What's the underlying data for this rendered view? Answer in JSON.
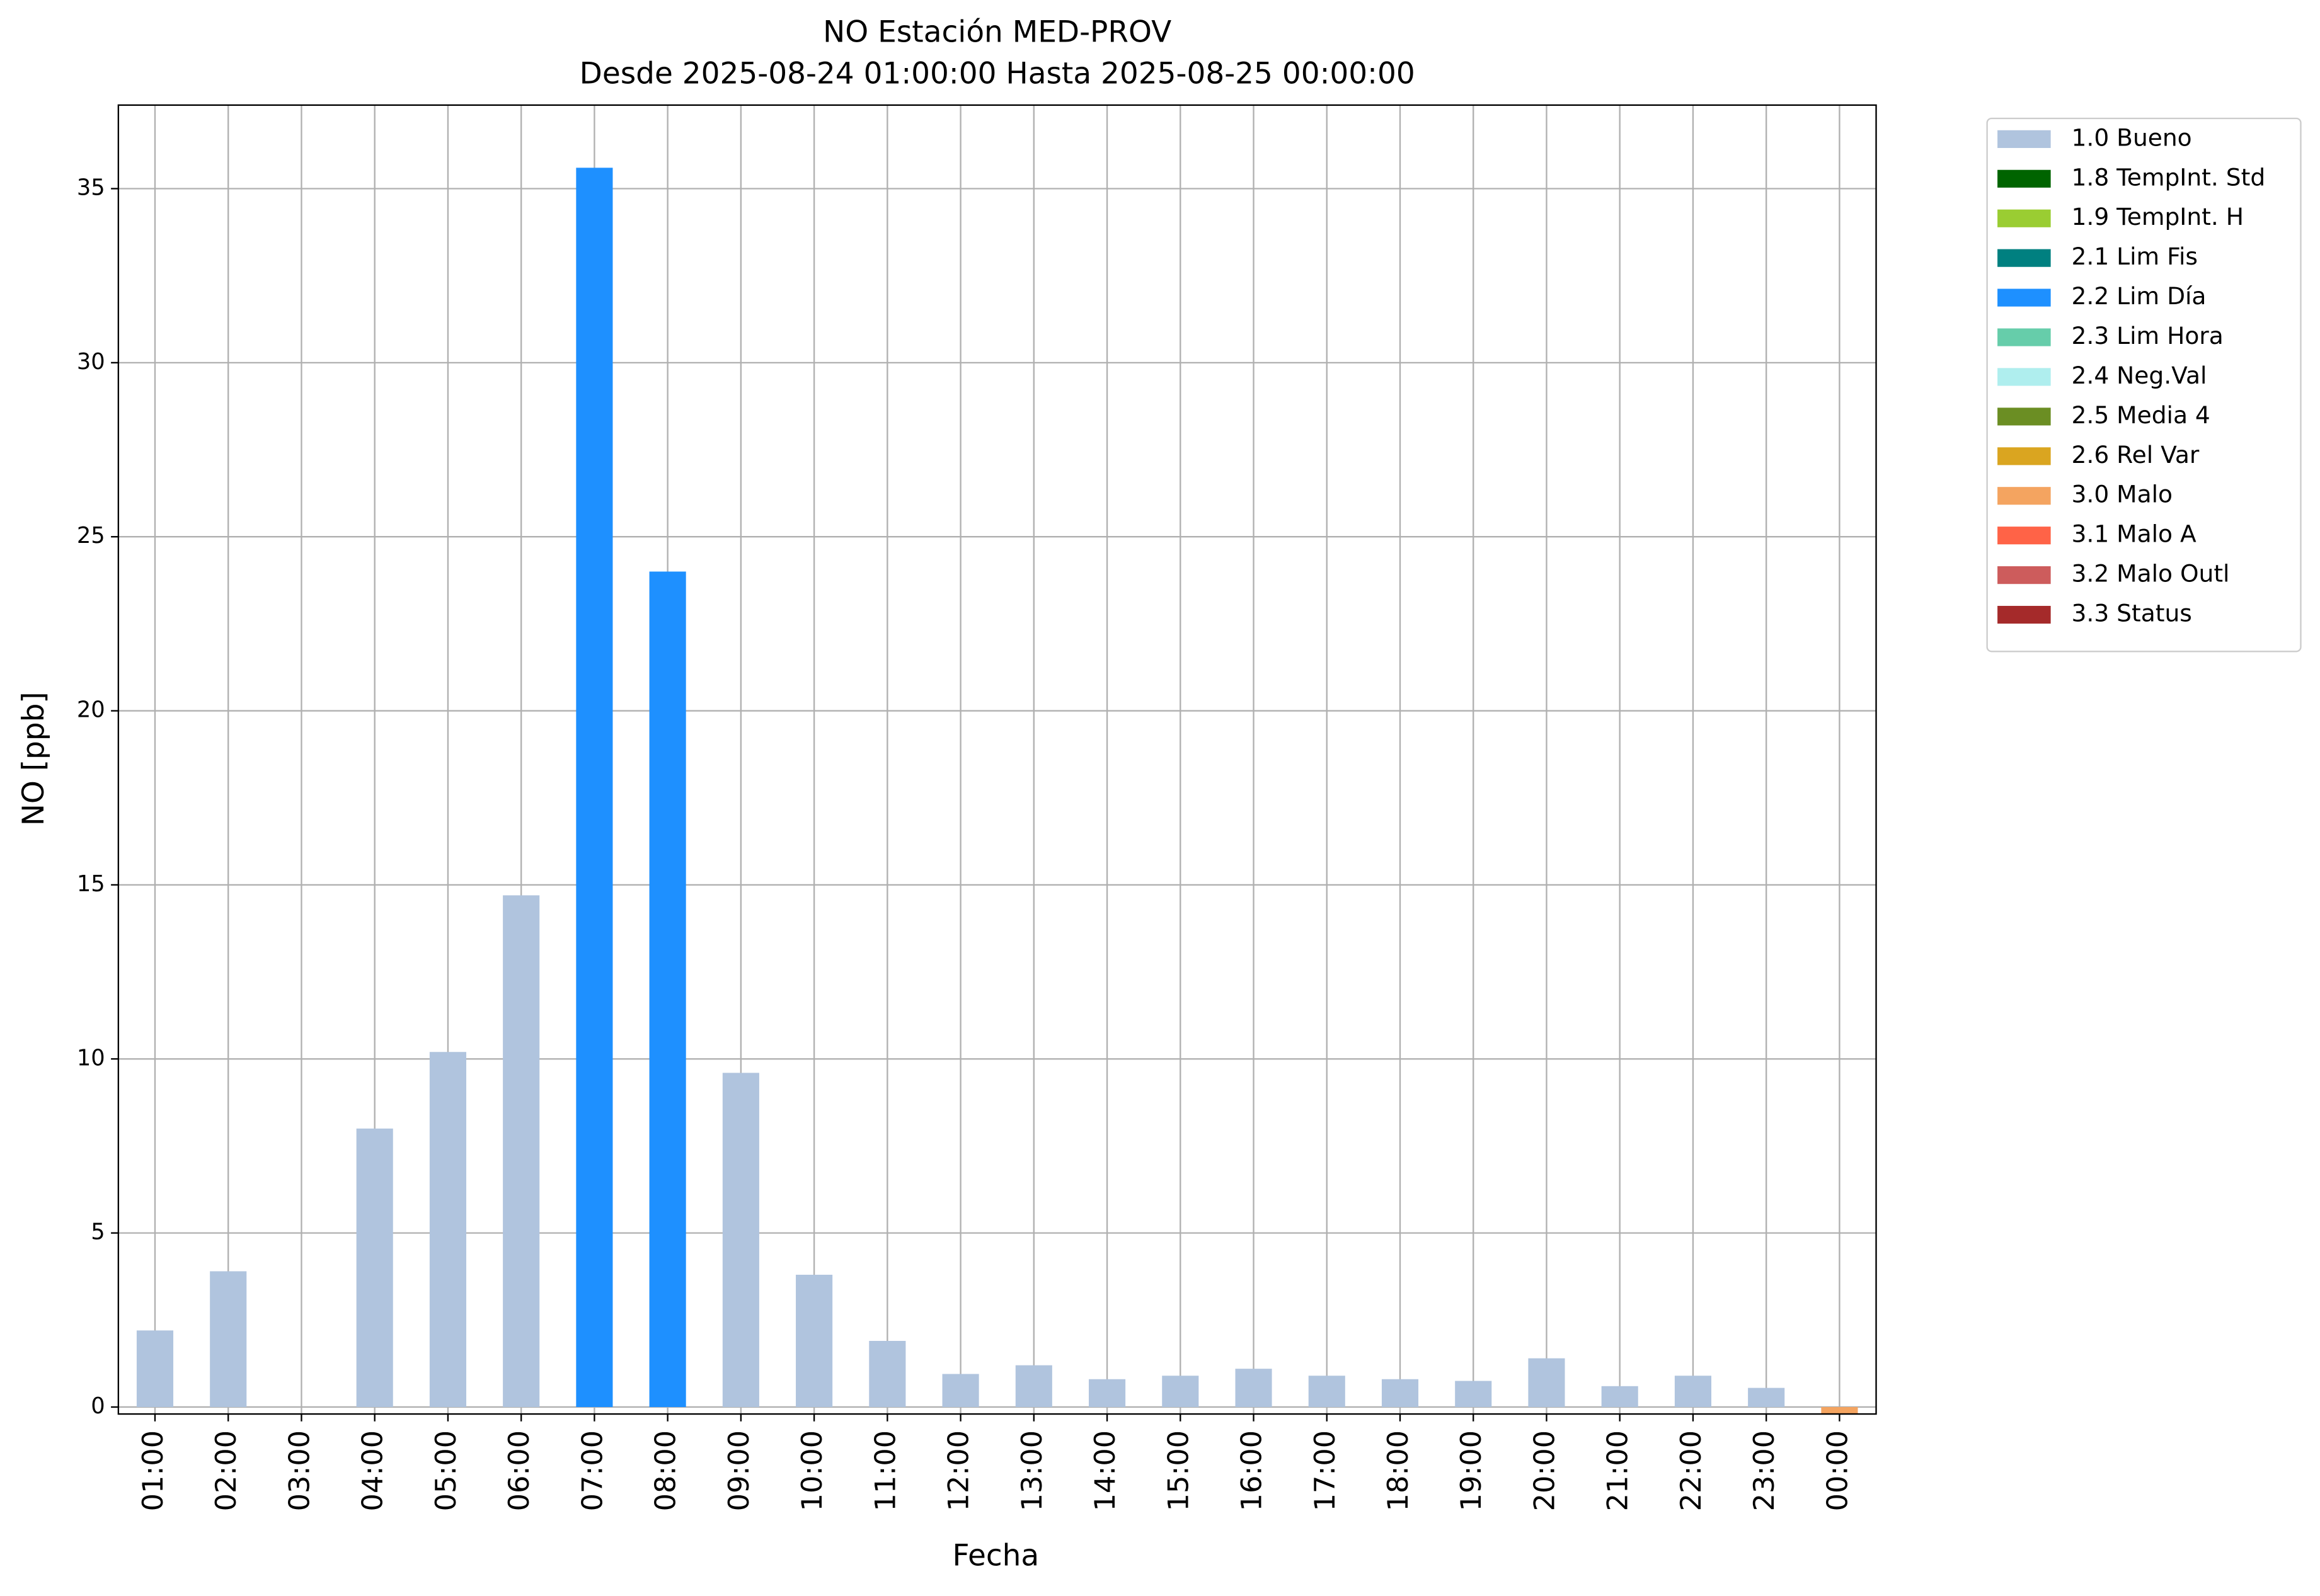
{
  "chart_data": {
    "type": "bar",
    "stacked": true,
    "title": "NO Estación MED-PROV",
    "subtitle": "Desde 2025-08-24 01:00:00 Hasta 2025-08-25 00:00:00",
    "xlabel": "Fecha",
    "ylabel": "NO [ppb]",
    "categories": [
      "01:00",
      "02:00",
      "03:00",
      "04:00",
      "05:00",
      "06:00",
      "07:00",
      "08:00",
      "09:00",
      "10:00",
      "11:00",
      "12:00",
      "13:00",
      "14:00",
      "15:00",
      "16:00",
      "17:00",
      "18:00",
      "19:00",
      "20:00",
      "21:00",
      "22:00",
      "23:00",
      "00:00"
    ],
    "ylim": [
      -0.2,
      37.4
    ],
    "yticks": [
      0,
      5,
      10,
      15,
      20,
      25,
      30,
      35
    ],
    "grid": true,
    "legend": "outside upper right",
    "series": [
      {
        "name": "1.0 Bueno",
        "color": "#b0c4de",
        "values": [
          2.2,
          3.9,
          null,
          8.0,
          10.2,
          14.7,
          null,
          null,
          9.6,
          3.8,
          1.9,
          0.95,
          1.2,
          0.8,
          0.9,
          1.1,
          0.9,
          0.8,
          0.75,
          1.4,
          0.6,
          0.9,
          0.55,
          null
        ]
      },
      {
        "name": "1.8 TempInt. Std",
        "color": "#006400",
        "values": [
          null,
          null,
          null,
          null,
          null,
          null,
          null,
          null,
          null,
          null,
          null,
          null,
          null,
          null,
          null,
          null,
          null,
          null,
          null,
          null,
          null,
          null,
          null,
          null
        ]
      },
      {
        "name": "1.9 TempInt. H",
        "color": "#9acd32",
        "values": [
          null,
          null,
          null,
          null,
          null,
          null,
          null,
          null,
          null,
          null,
          null,
          null,
          null,
          null,
          null,
          null,
          null,
          null,
          null,
          null,
          null,
          null,
          null,
          null
        ]
      },
      {
        "name": "2.1 Lim Fis",
        "color": "#008080",
        "values": [
          null,
          null,
          null,
          null,
          null,
          null,
          null,
          null,
          null,
          null,
          null,
          null,
          null,
          null,
          null,
          null,
          null,
          null,
          null,
          null,
          null,
          null,
          null,
          null
        ]
      },
      {
        "name": "2.2 Lim Día",
        "color": "#1e90ff",
        "values": [
          null,
          null,
          null,
          null,
          null,
          null,
          35.6,
          24.0,
          null,
          null,
          null,
          null,
          null,
          null,
          null,
          null,
          null,
          null,
          null,
          null,
          null,
          null,
          null,
          null
        ]
      },
      {
        "name": "2.3 Lim Hora",
        "color": "#66cdaa",
        "values": [
          null,
          null,
          null,
          null,
          null,
          null,
          null,
          null,
          null,
          null,
          null,
          null,
          null,
          null,
          null,
          null,
          null,
          null,
          null,
          null,
          null,
          null,
          null,
          null
        ]
      },
      {
        "name": "2.4 Neg.Val",
        "color": "#afeeee",
        "values": [
          null,
          null,
          null,
          null,
          null,
          null,
          null,
          null,
          null,
          null,
          null,
          null,
          null,
          null,
          null,
          null,
          null,
          null,
          null,
          null,
          null,
          null,
          null,
          null
        ]
      },
      {
        "name": "2.5 Media 4",
        "color": "#6b8e23",
        "values": [
          null,
          null,
          null,
          null,
          null,
          null,
          null,
          null,
          null,
          null,
          null,
          null,
          null,
          null,
          null,
          null,
          null,
          null,
          null,
          null,
          null,
          null,
          null,
          null
        ]
      },
      {
        "name": "2.6 Rel Var",
        "color": "#daa520",
        "values": [
          null,
          null,
          null,
          null,
          null,
          null,
          null,
          null,
          null,
          null,
          null,
          null,
          null,
          null,
          null,
          null,
          null,
          null,
          null,
          null,
          null,
          null,
          null,
          null
        ]
      },
      {
        "name": "3.0 Malo",
        "color": "#f4a460",
        "values": [
          null,
          null,
          null,
          null,
          null,
          null,
          null,
          null,
          null,
          null,
          null,
          null,
          null,
          null,
          null,
          null,
          null,
          null,
          null,
          null,
          null,
          null,
          null,
          -0.2
        ]
      },
      {
        "name": "3.1 Malo A",
        "color": "#ff6347",
        "values": [
          null,
          null,
          null,
          null,
          null,
          null,
          null,
          null,
          null,
          null,
          null,
          null,
          null,
          null,
          null,
          null,
          null,
          null,
          null,
          null,
          null,
          null,
          null,
          null
        ]
      },
      {
        "name": "3.2 Malo Outl",
        "color": "#cd5c5c",
        "values": [
          null,
          null,
          null,
          null,
          null,
          null,
          null,
          null,
          null,
          null,
          null,
          null,
          null,
          null,
          null,
          null,
          null,
          null,
          null,
          null,
          null,
          null,
          null,
          null
        ]
      },
      {
        "name": "3.3 Status",
        "color": "#a52a2a",
        "values": [
          null,
          null,
          null,
          null,
          null,
          null,
          null,
          null,
          null,
          null,
          null,
          null,
          null,
          null,
          null,
          null,
          null,
          null,
          null,
          null,
          null,
          null,
          null,
          null
        ]
      }
    ]
  }
}
